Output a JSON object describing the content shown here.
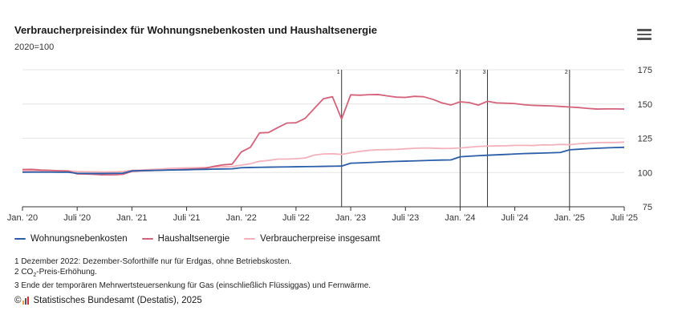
{
  "header": {
    "title": "Verbraucherpreisindex für Wohnungsnebenkosten und Haushaltsenergie",
    "subtitle": "2020=100",
    "menu_icon": "hamburger-menu-icon"
  },
  "chart_data": {
    "type": "line",
    "title": "Verbraucherpreisindex für Wohnungsnebenkosten und Haushaltsenergie",
    "subtitle": "2020=100",
    "xlabel": "",
    "ylabel": "",
    "ylim": [
      75,
      175
    ],
    "yticks": [
      "75",
      "100",
      "125",
      "150",
      "175"
    ],
    "x_start": "2020-01",
    "x_end": "2025-07",
    "xticks": [
      {
        "label": "Jan. '20",
        "month": "2020-01"
      },
      {
        "label": "Juli '20",
        "month": "2020-07"
      },
      {
        "label": "Jan. '21",
        "month": "2021-01"
      },
      {
        "label": "Juli '21",
        "month": "2021-07"
      },
      {
        "label": "Jan. '22",
        "month": "2022-01"
      },
      {
        "label": "Juli '22",
        "month": "2022-07"
      },
      {
        "label": "Jan. '23",
        "month": "2023-01"
      },
      {
        "label": "Juli '23",
        "month": "2023-07"
      },
      {
        "label": "Jan. '24",
        "month": "2024-01"
      },
      {
        "label": "Juli '24",
        "month": "2024-07"
      },
      {
        "label": "Jan. '25",
        "month": "2025-01"
      },
      {
        "label": "Juli '25",
        "month": "2025-07"
      }
    ],
    "grid": true,
    "legend_position": "bottom-left",
    "annotations": [
      {
        "month": "2022-12",
        "label": "1"
      },
      {
        "month": "2024-01",
        "label": "2"
      },
      {
        "month": "2024-04",
        "label": "3"
      },
      {
        "month": "2025-01",
        "label": "2"
      }
    ],
    "series": [
      {
        "name": "Wohnungsnebenkosten",
        "color": "#2a5ea8",
        "values": [
          100.2,
          100.3,
          100.3,
          100.3,
          100.2,
          100.2,
          99.4,
          99.3,
          99.3,
          99.3,
          99.4,
          99.5,
          101.2,
          101.4,
          101.5,
          101.6,
          101.8,
          101.9,
          102.0,
          102.2,
          102.3,
          102.5,
          102.6,
          102.7,
          103.5,
          103.7,
          103.8,
          103.9,
          104.0,
          104.1,
          104.2,
          104.3,
          104.4,
          104.5,
          104.6,
          104.7,
          106.8,
          107.0,
          107.3,
          107.6,
          107.9,
          108.1,
          108.3,
          108.5,
          108.7,
          108.9,
          109.1,
          109.2,
          111.5,
          111.9,
          112.3,
          112.6,
          112.9,
          113.2,
          113.5,
          113.8,
          114.0,
          114.2,
          114.4,
          114.6,
          116.6,
          117.0,
          117.4,
          117.7,
          118.0,
          118.2,
          118.4
        ]
      },
      {
        "name": "Haushaltsenergie",
        "color": "#d4637a",
        "values": [
          102.2,
          102.3,
          101.8,
          101.6,
          101.3,
          101.1,
          99.0,
          98.9,
          98.6,
          98.3,
          98.3,
          98.7,
          100.8,
          101.2,
          101.4,
          101.6,
          101.9,
          102.1,
          102.4,
          102.7,
          103.0,
          104.5,
          105.6,
          106.1,
          115.0,
          118.4,
          128.9,
          129.2,
          132.8,
          136.1,
          136.3,
          139.5,
          146.7,
          153.8,
          155.3,
          139.0,
          156.7,
          156.4,
          156.8,
          156.9,
          155.9,
          155.0,
          154.8,
          155.6,
          155.3,
          153.4,
          150.8,
          149.3,
          151.6,
          151.0,
          149.2,
          152.0,
          150.8,
          150.6,
          150.3,
          149.5,
          149.0,
          148.8,
          148.6,
          148.2,
          147.8,
          147.4,
          146.8,
          146.3,
          146.4,
          146.4,
          146.3
        ]
      },
      {
        "name": "Verbraucherpreise insgesamt",
        "color": "#f3b1bc",
        "values": [
          101.1,
          101.2,
          101.3,
          101.2,
          101.1,
          101.2,
          100.7,
          100.6,
          100.5,
          100.4,
          100.5,
          100.7,
          101.6,
          101.8,
          102.2,
          102.5,
          103.0,
          103.2,
          103.4,
          103.5,
          103.7,
          103.9,
          104.2,
          104.3,
          105.4,
          106.4,
          108.2,
          108.8,
          109.8,
          109.8,
          110.1,
          110.6,
          112.7,
          113.5,
          113.7,
          113.2,
          114.4,
          115.4,
          116.2,
          116.6,
          116.7,
          116.9,
          117.3,
          117.7,
          117.9,
          117.8,
          117.5,
          117.6,
          117.9,
          118.5,
          119.0,
          119.3,
          119.4,
          119.5,
          119.8,
          119.8,
          119.7,
          120.2,
          120.1,
          120.5,
          120.3,
          121.0,
          121.4,
          121.8,
          121.9,
          121.9,
          122.2
        ]
      }
    ]
  },
  "notes": {
    "note1": "1 Dezember 2022: Dezember-Soforthilfe nur für Erdgas, ohne Betriebskosten.",
    "note2_pre": "2 CO",
    "note2_sub": "2",
    "note2_post": "-Preis-Erhöhung.",
    "note3": "3 Ende der temporären Mehrwertsteuersenkung für Gas (einschließlich Flüssiggas) und Fernwärme."
  },
  "source": {
    "prefix": "©",
    "logo_icon": "destatis-logo-icon",
    "text": "Statistisches Bundesamt (Destatis), 2025"
  }
}
